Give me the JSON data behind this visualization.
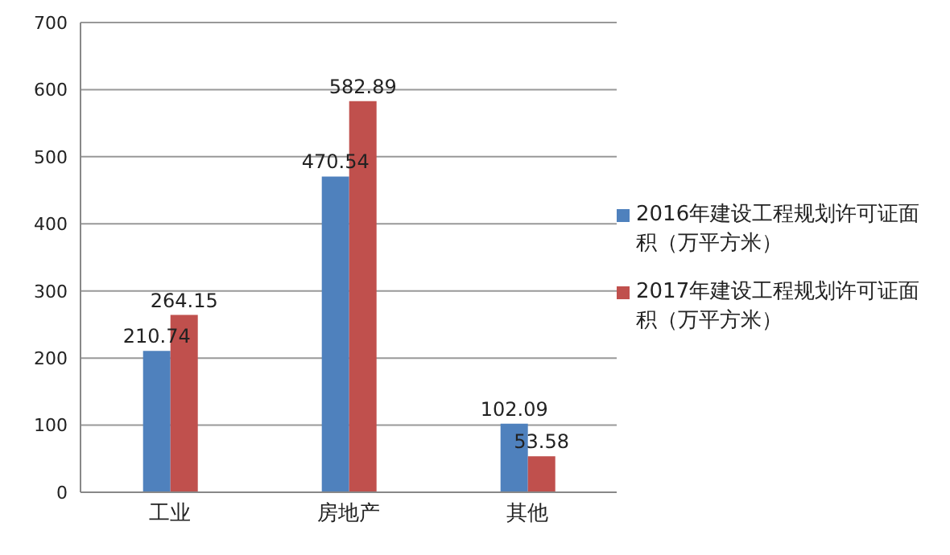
{
  "chart_data": {
    "type": "bar",
    "categories": [
      "工业",
      "房地产",
      "其他"
    ],
    "series": [
      {
        "name": "2016年建设工程规划许可证面积（万平方米）",
        "color": "#4f81bd",
        "values": [
          210.74,
          470.54,
          102.09
        ]
      },
      {
        "name": "2017年建设工程规划许可证面积（万平方米）",
        "color": "#c0504d",
        "values": [
          264.15,
          582.89,
          53.58
        ]
      }
    ],
    "ylim": [
      0,
      700
    ],
    "yticks": [
      0,
      100,
      200,
      300,
      400,
      500,
      600,
      700
    ],
    "grid": "y",
    "legend": "right",
    "data_labels": true
  }
}
